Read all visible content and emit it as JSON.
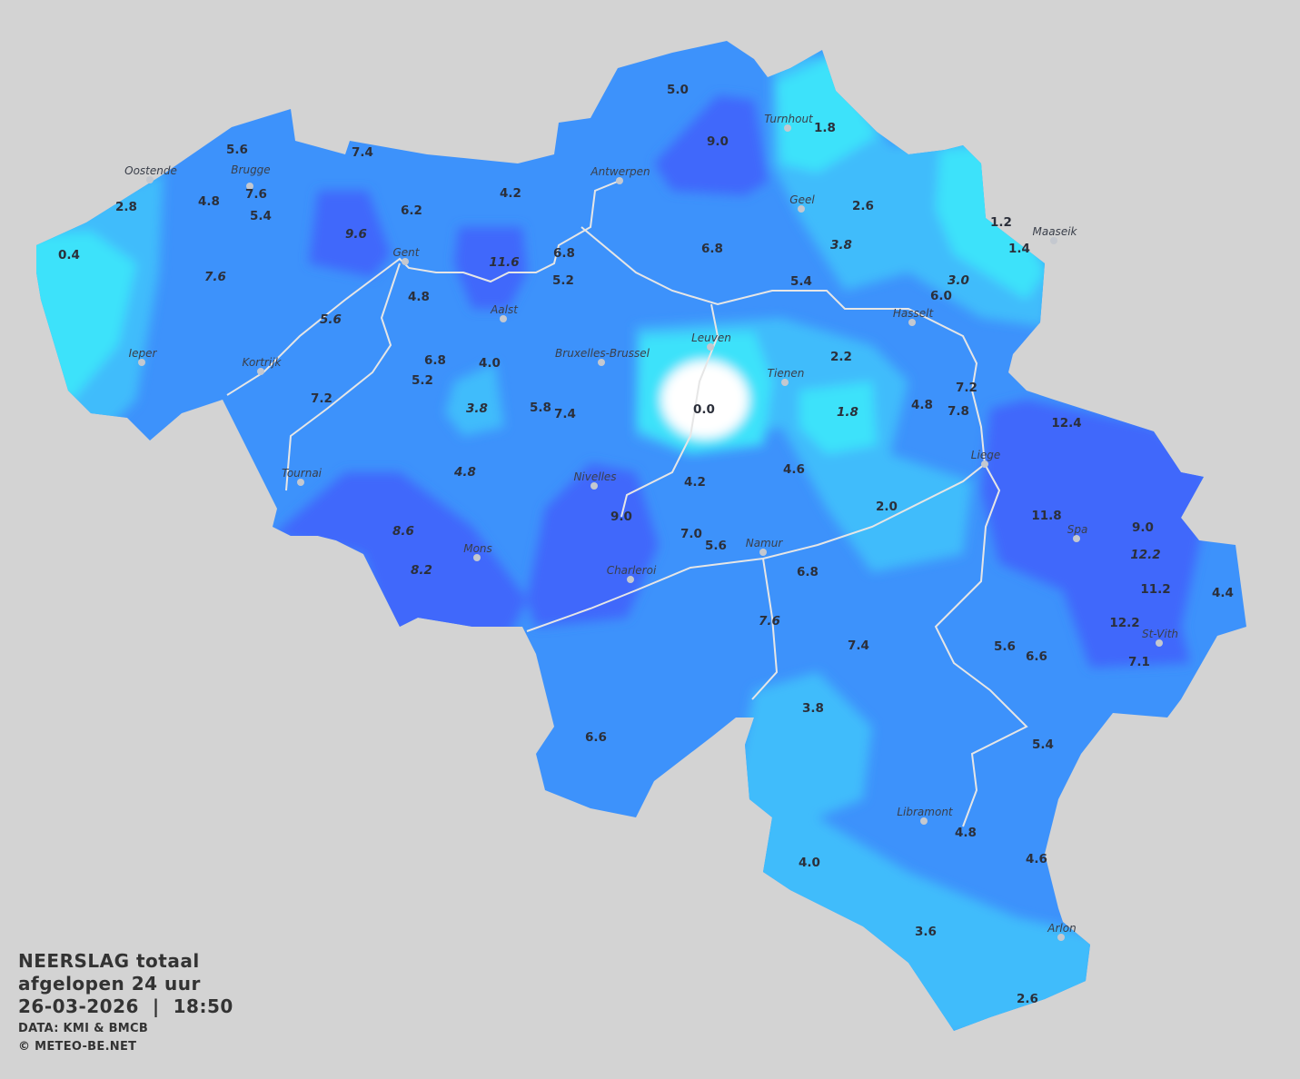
{
  "legend": {
    "title_line1": "NEERSLAG totaal",
    "title_line2": "afgelopen 24 uur",
    "date": "26-03-2026",
    "separator": "|",
    "time": "18:50",
    "source": "DATA: KMI & BMCB",
    "copyright": "© METEO-BE.NET"
  },
  "colors": {
    "background": "#d3d3d3",
    "base_rain": "#3d92fb",
    "low_rain": "#40bcfb",
    "very_low_rain": "#3ee2fa",
    "high_rain": "#4067fb",
    "zero_rain": "#ffffff",
    "rivers": "#e6e6e6"
  },
  "cities": [
    "Turnhout",
    "Oostende",
    "Brugge",
    "Antwerpen",
    "Geel",
    "Maaseik",
    "Gent",
    "Aalst",
    "Hasselt",
    "Leuven",
    "Bruxelles-Brussel",
    "Ieper",
    "Kortrijk",
    "Tienen",
    "Liege",
    "Tournai",
    "Nivelles",
    "Spa",
    "Mons",
    "Namur",
    "Charleroi",
    "St-Vith",
    "Libramont",
    "Arlon"
  ],
  "values": [
    {
      "v": "5.0",
      "italic": false
    },
    {
      "v": "9.0",
      "italic": false
    },
    {
      "v": "1.8",
      "italic": false
    },
    {
      "v": "5.6",
      "italic": false
    },
    {
      "v": "7.4",
      "italic": false
    },
    {
      "v": "7.6",
      "italic": false
    },
    {
      "v": "2.8",
      "italic": false
    },
    {
      "v": "4.8",
      "italic": false
    },
    {
      "v": "5.4",
      "italic": false
    },
    {
      "v": "6.2",
      "italic": false
    },
    {
      "v": "4.2",
      "italic": false
    },
    {
      "v": "2.6",
      "italic": false
    },
    {
      "v": "1.2",
      "italic": false
    },
    {
      "v": "1.4",
      "italic": false
    },
    {
      "v": "0.4",
      "italic": false
    },
    {
      "v": "9.6",
      "italic": true
    },
    {
      "v": "11.6",
      "italic": true
    },
    {
      "v": "6.8",
      "italic": false
    },
    {
      "v": "5.2",
      "italic": false
    },
    {
      "v": "6.8",
      "italic": false
    },
    {
      "v": "3.8",
      "italic": true
    },
    {
      "v": "3.0",
      "italic": true
    },
    {
      "v": "7.6",
      "italic": true
    },
    {
      "v": "4.8",
      "italic": false
    },
    {
      "v": "5.4",
      "italic": false
    },
    {
      "v": "6.0",
      "italic": false
    },
    {
      "v": "5.6",
      "italic": true
    },
    {
      "v": "2.2",
      "italic": false
    },
    {
      "v": "6.8",
      "italic": false
    },
    {
      "v": "4.0",
      "italic": false
    },
    {
      "v": "5.2",
      "italic": false
    },
    {
      "v": "7.2",
      "italic": false
    },
    {
      "v": "3.8",
      "italic": true
    },
    {
      "v": "5.8",
      "italic": false
    },
    {
      "v": "7.4",
      "italic": false
    },
    {
      "v": "0.0",
      "italic": false
    },
    {
      "v": "1.8",
      "italic": true
    },
    {
      "v": "7.2",
      "italic": false
    },
    {
      "v": "4.8",
      "italic": false
    },
    {
      "v": "7.8",
      "italic": false
    },
    {
      "v": "12.4",
      "italic": false
    },
    {
      "v": "4.8",
      "italic": true
    },
    {
      "v": "4.2",
      "italic": false
    },
    {
      "v": "4.6",
      "italic": false
    },
    {
      "v": "9.0",
      "italic": false
    },
    {
      "v": "2.0",
      "italic": false
    },
    {
      "v": "8.6",
      "italic": true
    },
    {
      "v": "11.8",
      "italic": false
    },
    {
      "v": "9.0",
      "italic": false
    },
    {
      "v": "12.2",
      "italic": true
    },
    {
      "v": "7.0",
      "italic": false
    },
    {
      "v": "5.6",
      "italic": false
    },
    {
      "v": "8.2",
      "italic": true
    },
    {
      "v": "6.8",
      "italic": false
    },
    {
      "v": "11.2",
      "italic": false
    },
    {
      "v": "4.4",
      "italic": false
    },
    {
      "v": "7.6",
      "italic": true
    },
    {
      "v": "12.2",
      "italic": false
    },
    {
      "v": "7.4",
      "italic": false
    },
    {
      "v": "5.6",
      "italic": false
    },
    {
      "v": "6.6",
      "italic": false
    },
    {
      "v": "7.1",
      "italic": false
    },
    {
      "v": "3.8",
      "italic": false
    },
    {
      "v": "6.6",
      "italic": false
    },
    {
      "v": "5.4",
      "italic": false
    },
    {
      "v": "4.8",
      "italic": false
    },
    {
      "v": "4.6",
      "italic": false
    },
    {
      "v": "4.0",
      "italic": false
    },
    {
      "v": "3.6",
      "italic": false
    },
    {
      "v": "2.6",
      "italic": false
    }
  ]
}
